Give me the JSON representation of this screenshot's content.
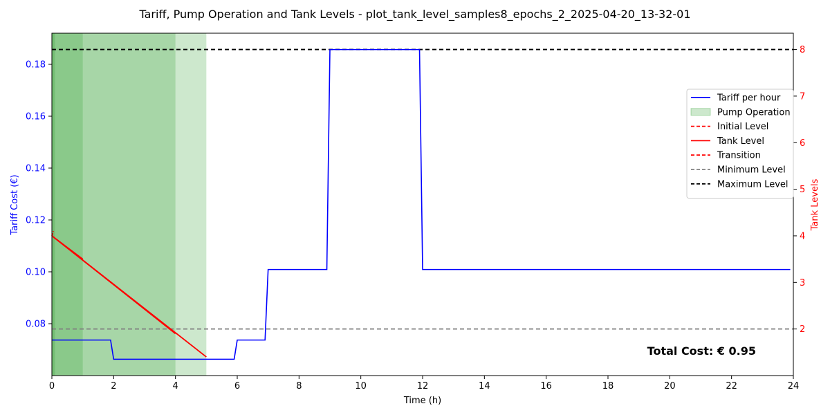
{
  "chart_data": {
    "type": "line",
    "title": "Tariff, Pump Operation and Tank Levels - plot_tank_level_samples8_epochs_2_2025-04-20_13-32-01",
    "xlabel": "Time (h)",
    "ylabel_left": "Tariff Cost (€)",
    "ylabel_right": "Tank Levels",
    "xlim": [
      0,
      24
    ],
    "ylim_left": [
      0.06,
      0.192
    ],
    "ylim_right": [
      1,
      8.35
    ],
    "x_ticks": [
      0,
      2,
      4,
      6,
      8,
      10,
      12,
      14,
      16,
      18,
      20,
      22,
      24
    ],
    "y_left_ticks": [
      0.08,
      0.1,
      0.12,
      0.14,
      0.16,
      0.18
    ],
    "y_right_ticks": [
      2,
      3,
      4,
      5,
      6,
      7,
      8
    ],
    "grid": false,
    "legend_position": "right",
    "annotation": "Total Cost: € 0.95",
    "colors": {
      "tariff": "#0000ff",
      "pump": "#2ca02c",
      "tank": "#ff0000",
      "minimum": "#808080",
      "maximum": "#000000"
    },
    "pump_operation": [
      {
        "start": 0,
        "end": 1
      },
      {
        "start": 0,
        "end": 4
      },
      {
        "start": 0,
        "end": 5
      },
      {
        "start": 0,
        "end": 0.1
      }
    ],
    "tariff": {
      "name": "Tariff per hour",
      "x": [
        0,
        1.9,
        2.0,
        5.9,
        6.0,
        6.9,
        7.0,
        8.9,
        9.0,
        11.9,
        12.0,
        23.9
      ],
      "y": [
        0.0737,
        0.0737,
        0.0663,
        0.0663,
        0.0737,
        0.0737,
        0.1009,
        0.1009,
        0.1857,
        0.1857,
        0.1009,
        0.1009
      ]
    },
    "tank_lines": [
      {
        "x": [
          0,
          4
        ],
        "y": [
          4.0,
          1.9
        ]
      },
      {
        "x": [
          0,
          5
        ],
        "y": [
          4.0,
          1.4
        ]
      },
      {
        "x": [
          0,
          1
        ],
        "y": [
          4.0,
          3.5
        ]
      }
    ],
    "initial_level": {
      "x": [
        0,
        0.05
      ],
      "y": [
        4.0,
        4.1
      ]
    },
    "minimum_level": 2,
    "maximum_level": 8,
    "legend": [
      {
        "label": "Tariff per hour",
        "style": "solid",
        "color": "#0000ff"
      },
      {
        "label": "Pump Operation",
        "style": "patch",
        "color": "#2ca02c"
      },
      {
        "label": "Initial Level",
        "style": "dashed",
        "color": "#ff0000"
      },
      {
        "label": "Tank Level",
        "style": "solid",
        "color": "#ff0000"
      },
      {
        "label": "Transition",
        "style": "dashed",
        "color": "#ff0000"
      },
      {
        "label": "Minimum Level",
        "style": "dashed",
        "color": "#808080"
      },
      {
        "label": "Maximum Level",
        "style": "dashed",
        "color": "#000000"
      }
    ]
  }
}
